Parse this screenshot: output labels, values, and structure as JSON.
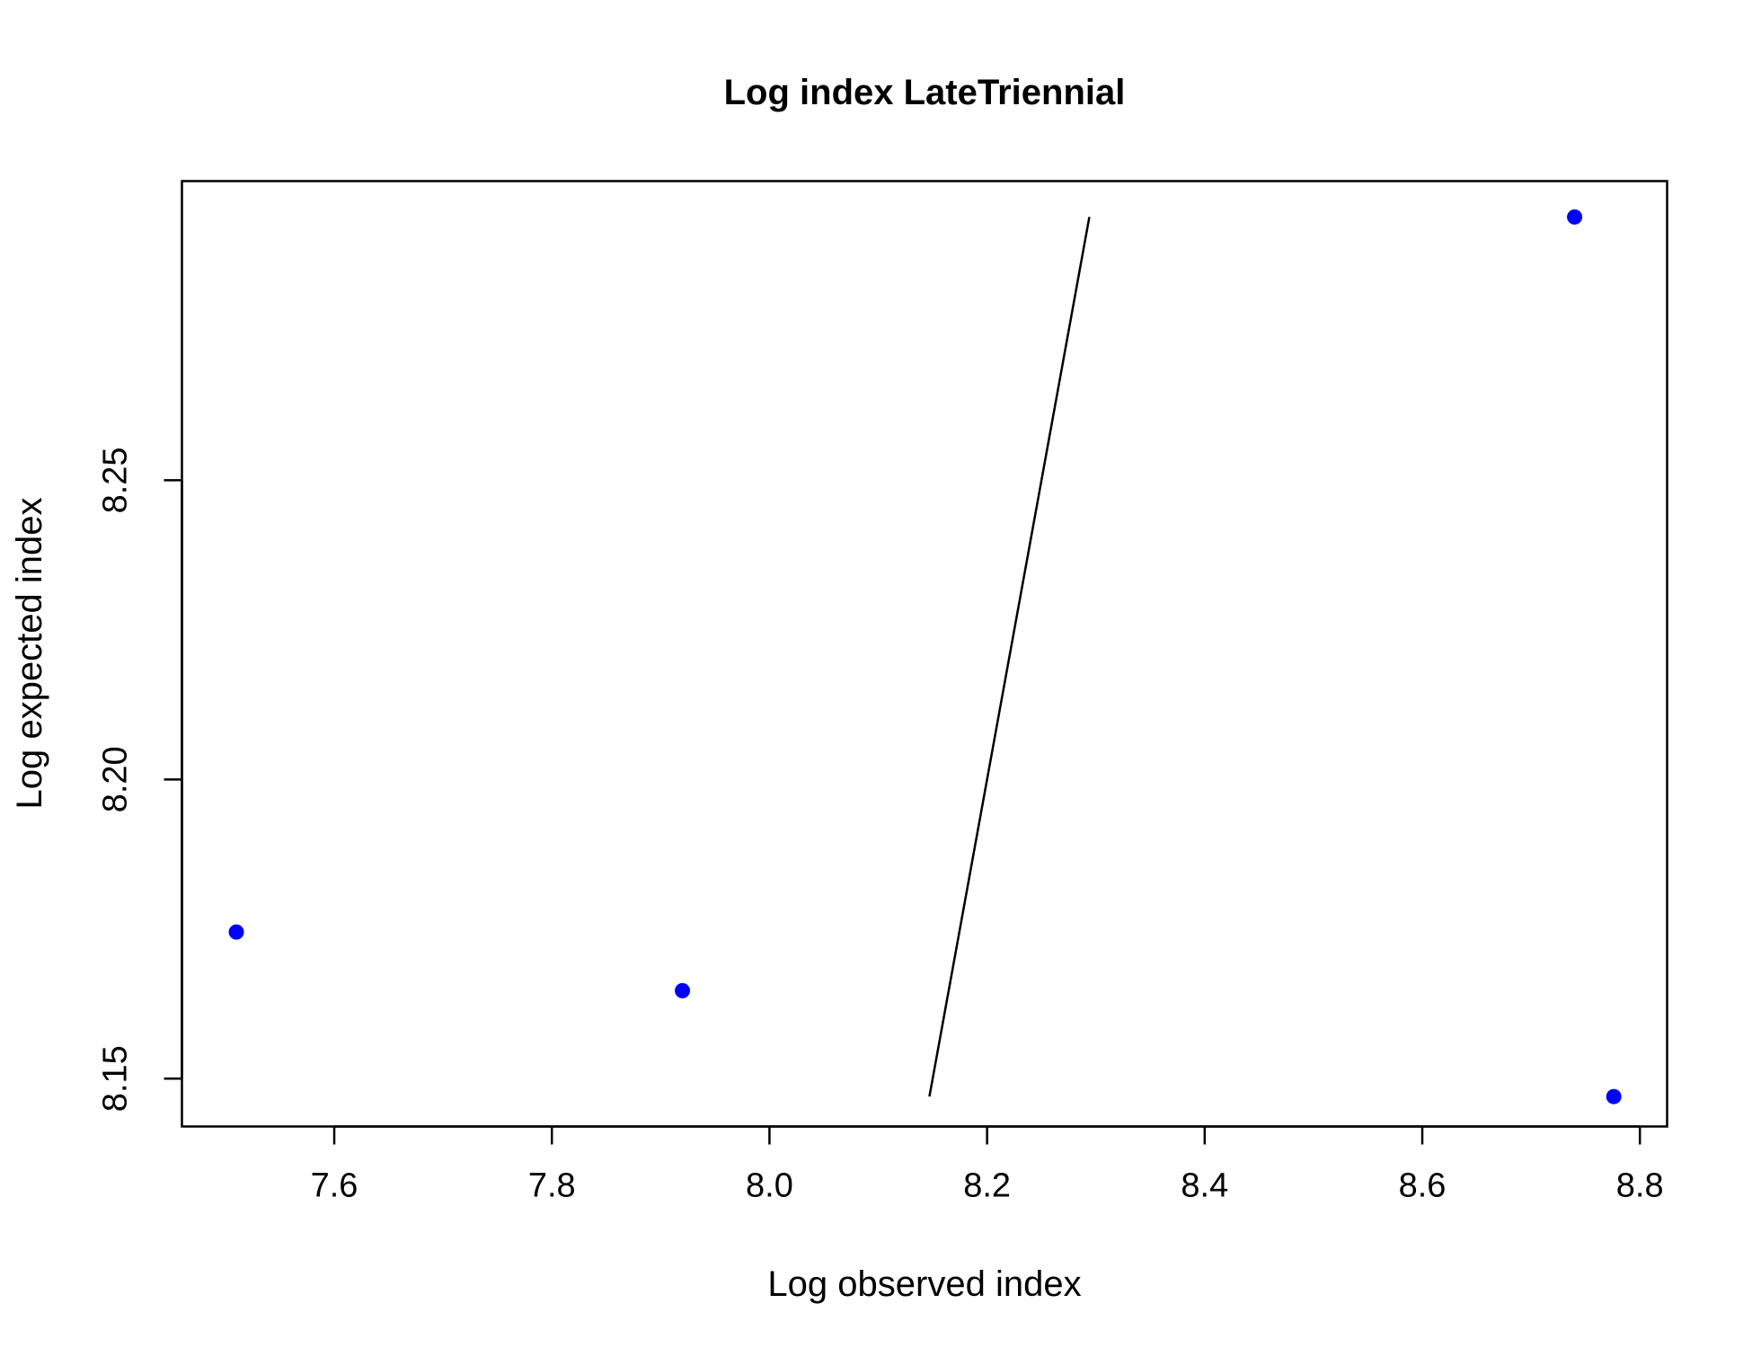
{
  "chart_data": {
    "type": "scatter",
    "title": "Log index LateTriennial",
    "xlabel": "Log observed index",
    "ylabel": "Log expected index",
    "xlim": [
      7.46,
      8.825
    ],
    "ylim": [
      8.142,
      8.3
    ],
    "x_ticks": [
      7.6,
      7.8,
      8.0,
      8.2,
      8.4,
      8.6,
      8.8
    ],
    "x_tick_labels": [
      "7.6",
      "7.8",
      "8.0",
      "8.2",
      "8.4",
      "8.6",
      "8.8"
    ],
    "y_ticks": [
      8.15,
      8.2,
      8.25
    ],
    "y_tick_labels": [
      "8.15",
      "8.20",
      "8.25"
    ],
    "grid": false,
    "series": [
      {
        "type": "scatter",
        "color": "#0000ff",
        "points": [
          {
            "x": 7.51,
            "y": 8.1745
          },
          {
            "x": 7.92,
            "y": 8.1647
          },
          {
            "x": 8.74,
            "y": 8.294
          },
          {
            "x": 8.776,
            "y": 8.147
          }
        ]
      },
      {
        "type": "line",
        "color": "#000000",
        "points": [
          {
            "x": 8.147,
            "y": 8.147
          },
          {
            "x": 8.294,
            "y": 8.294
          }
        ]
      }
    ]
  }
}
